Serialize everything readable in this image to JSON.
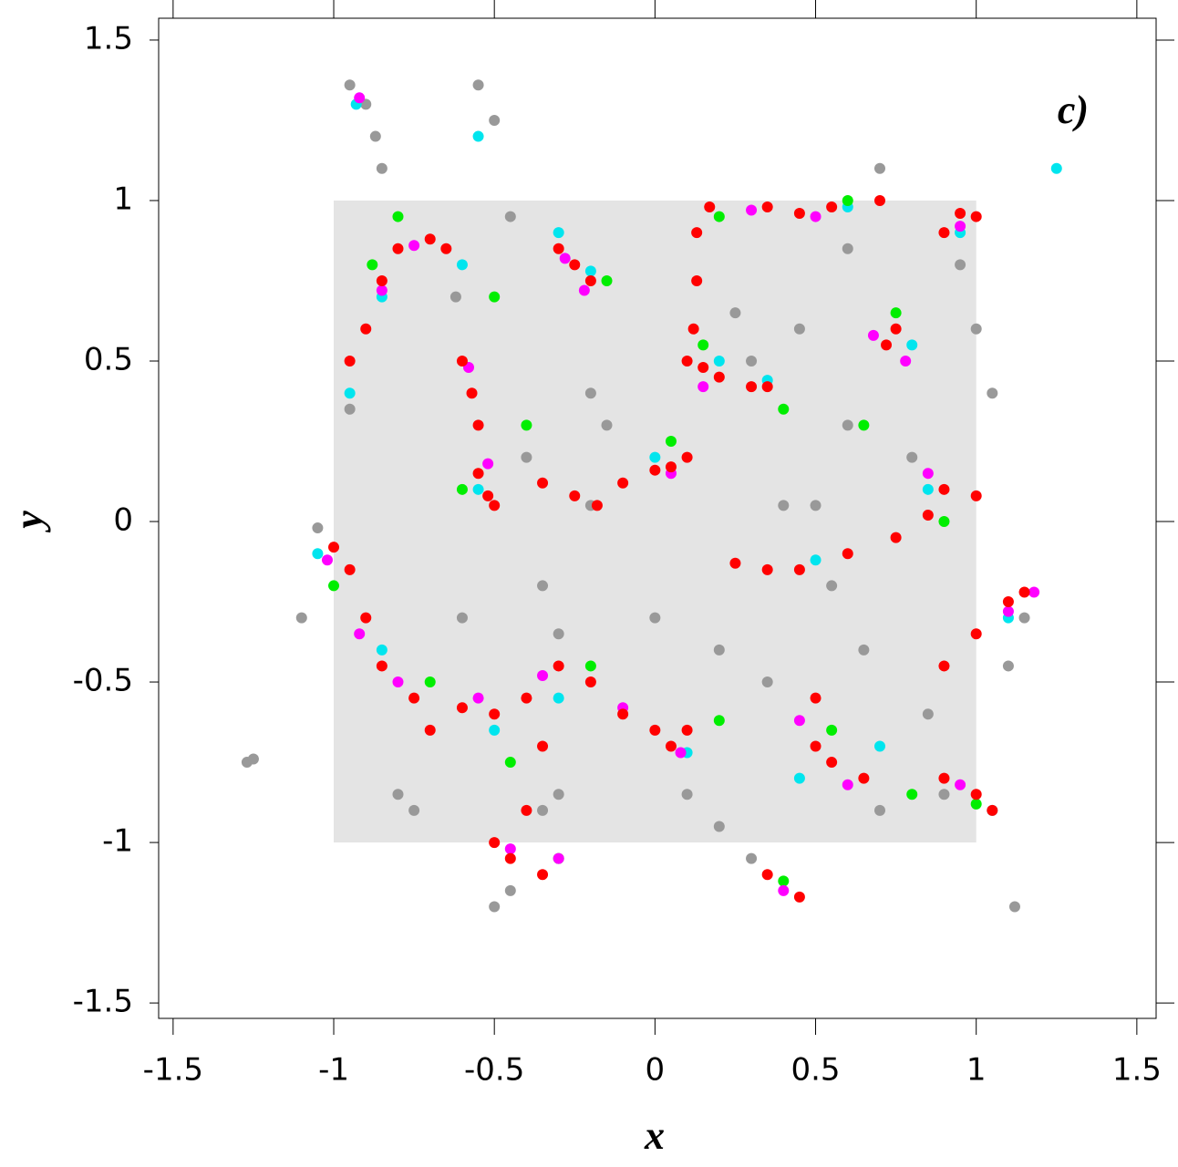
{
  "chart_data": {
    "type": "scatter",
    "annotation": "c)",
    "xlabel": "x",
    "ylabel": "y",
    "xlim": [
      -1.545,
      1.56
    ],
    "ylim": [
      -1.548,
      1.568
    ],
    "xticks": [
      -1.5,
      -1,
      -0.5,
      0,
      0.5,
      1,
      1.5
    ],
    "yticks": [
      -1.5,
      -1,
      -0.5,
      0,
      0.5,
      1,
      1.5
    ],
    "region": {
      "x": [
        -1,
        1
      ],
      "y": [
        -1,
        1
      ],
      "color": "#e4e4e4"
    },
    "series": [
      {
        "color": "#999999",
        "x": [
          -0.95,
          -0.9,
          -0.87,
          -0.85,
          -0.55,
          -0.5,
          -0.45,
          -0.62,
          -0.4,
          -0.35,
          -0.2,
          -0.15,
          0.25,
          0.3,
          0.45,
          0.6,
          0.7,
          0.95,
          1.0,
          1.05,
          -1.05,
          -1.1,
          -0.95,
          -0.8,
          -0.75,
          -0.6,
          -0.3,
          -0.2,
          0,
          0.2,
          0.4,
          0.55,
          0.65,
          0.8,
          0.85,
          1.1,
          1.15,
          1.12,
          -0.5,
          -0.45,
          -0.3,
          0.2,
          0.3,
          0.7,
          0.9,
          -1.27,
          -1.25,
          0.6,
          0.35,
          -0.35,
          0.1,
          0.5
        ],
        "values": [
          1.36,
          1.3,
          1.2,
          1.1,
          1.36,
          1.25,
          0.95,
          0.7,
          0.2,
          -0.2,
          0.4,
          0.3,
          0.65,
          0.5,
          0.6,
          0.85,
          1.1,
          0.8,
          0.6,
          0.4,
          -0.02,
          -0.3,
          0.35,
          -0.85,
          -0.9,
          -0.3,
          -0.35,
          0.05,
          -0.3,
          -0.4,
          0.05,
          -0.2,
          -0.4,
          0.2,
          -0.6,
          -0.45,
          -0.3,
          -1.2,
          -1.2,
          -1.15,
          -0.85,
          -0.95,
          -1.05,
          -0.9,
          -0.85,
          -0.75,
          -0.74,
          0.3,
          -0.5,
          -0.9,
          -0.85,
          0.05
        ]
      },
      {
        "color": "#00e5ee",
        "x": [
          -0.93,
          -0.85,
          -0.6,
          -0.55,
          -0.3,
          -0.2,
          0.2,
          0.35,
          0.6,
          0.8,
          0.95,
          -1.05,
          -0.85,
          -0.5,
          -0.3,
          0.1,
          0.45,
          0.7,
          1.05,
          1.25,
          -0.95,
          -0.55,
          0.0,
          0.5,
          0.85,
          1.1
        ],
        "values": [
          1.3,
          0.7,
          0.8,
          1.2,
          0.9,
          0.78,
          0.5,
          0.44,
          0.98,
          0.55,
          0.9,
          -0.1,
          -0.4,
          -0.65,
          -0.55,
          -0.72,
          -0.8,
          -0.7,
          -0.9,
          1.1,
          0.4,
          0.1,
          0.2,
          -0.12,
          0.1,
          -0.3
        ]
      },
      {
        "color": "#00ee00",
        "x": [
          -0.88,
          -0.8,
          -0.5,
          -0.4,
          -0.15,
          0.05,
          0.2,
          0.4,
          0.6,
          0.75,
          0.9,
          -1.0,
          -0.7,
          -0.45,
          -0.2,
          0.2,
          0.55,
          0.8,
          1.0,
          -0.6,
          0.15,
          0.65,
          -0.3,
          0.4
        ],
        "values": [
          0.8,
          0.95,
          0.7,
          0.3,
          0.75,
          0.25,
          0.95,
          0.35,
          1.0,
          0.65,
          0.0,
          -0.2,
          -0.5,
          -0.75,
          -0.45,
          -0.62,
          -0.65,
          -0.85,
          -0.88,
          0.1,
          0.55,
          0.3,
          -1.05,
          -1.12
        ]
      },
      {
        "color": "#ff00ff",
        "x": [
          -0.92,
          -0.85,
          -0.75,
          -0.58,
          -0.52,
          -0.28,
          -0.22,
          0.05,
          0.15,
          0.3,
          0.5,
          0.68,
          0.78,
          0.95,
          -1.02,
          -0.92,
          -0.8,
          -0.55,
          -0.35,
          -0.1,
          0.08,
          0.45,
          0.6,
          0.95,
          1.1,
          -0.45,
          -0.3,
          0.4,
          0.85,
          1.18
        ],
        "values": [
          1.32,
          0.72,
          0.86,
          0.48,
          0.18,
          0.82,
          0.72,
          0.15,
          0.42,
          0.97,
          0.95,
          0.58,
          0.5,
          0.92,
          -0.12,
          -0.35,
          -0.5,
          -0.55,
          -0.48,
          -0.58,
          -0.72,
          -0.62,
          -0.82,
          -0.82,
          -0.28,
          -1.02,
          -1.05,
          -1.15,
          0.15,
          -0.22
        ]
      },
      {
        "color": "#ff0000",
        "x": [
          -0.95,
          -0.9,
          -0.85,
          -0.8,
          -0.7,
          -0.65,
          -0.6,
          -0.57,
          -0.55,
          -0.55,
          -0.52,
          -0.5,
          -0.3,
          -0.25,
          -0.2,
          -0.35,
          -0.25,
          -0.18,
          -0.1,
          0,
          0.05,
          0.1,
          0.12,
          0.1,
          0.15,
          0.2,
          0.3,
          0.35,
          0.13,
          0.13,
          0.17,
          0.35,
          0.45,
          0.55,
          0.7,
          0.75,
          0.72,
          0.9,
          0.95,
          1.0,
          0.85,
          0.75,
          0.6,
          0.45,
          0.35,
          0.25,
          0.9,
          1.0,
          -1.0,
          -0.95,
          -0.9,
          -0.85,
          -0.75,
          -0.7,
          -0.6,
          -0.5,
          -0.4,
          -0.3,
          -0.2,
          -0.1,
          0,
          0.05,
          0.1,
          0.5,
          0.5,
          0.55,
          0.65,
          0.9,
          1.0,
          1.05,
          0.9,
          1.0,
          1.1,
          1.15,
          -0.35,
          -0.4,
          -0.5,
          -0.45,
          -0.35,
          0.35,
          0.45
        ],
        "values": [
          0.5,
          0.6,
          0.75,
          0.85,
          0.88,
          0.85,
          0.5,
          0.4,
          0.3,
          0.15,
          0.08,
          0.05,
          0.85,
          0.8,
          0.75,
          0.12,
          0.08,
          0.05,
          0.12,
          0.16,
          0.17,
          0.2,
          0.6,
          0.5,
          0.48,
          0.45,
          0.42,
          0.42,
          0.75,
          0.9,
          0.98,
          0.98,
          0.96,
          0.98,
          1.0,
          0.6,
          0.55,
          0.9,
          0.96,
          0.95,
          0.02,
          -0.05,
          -0.1,
          -0.15,
          -0.15,
          -0.13,
          0.1,
          0.08,
          -0.08,
          -0.15,
          -0.3,
          -0.45,
          -0.55,
          -0.65,
          -0.58,
          -0.6,
          -0.55,
          -0.45,
          -0.5,
          -0.6,
          -0.65,
          -0.7,
          -0.65,
          -0.7,
          -0.55,
          -0.75,
          -0.8,
          -0.8,
          -0.85,
          -0.9,
          -0.45,
          -0.35,
          -0.25,
          -0.22,
          -0.7,
          -0.9,
          -1.0,
          -1.05,
          -1.1,
          -1.1,
          -1.17
        ]
      }
    ]
  }
}
